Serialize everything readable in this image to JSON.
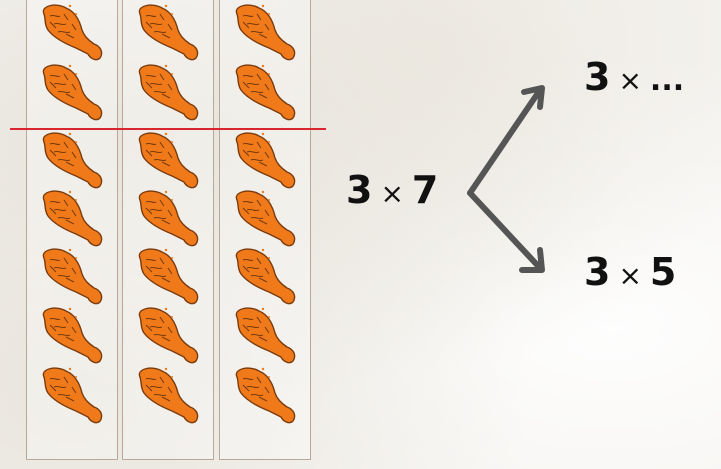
{
  "multiplication": {
    "main": {
      "a": "3",
      "op": "×",
      "b": "7"
    },
    "top": {
      "a": "3",
      "op": "×",
      "b": "..."
    },
    "bottom": {
      "a": "3",
      "op": "×",
      "b": "5"
    }
  },
  "illustration": {
    "columns": 3,
    "rows": 7,
    "item_icon": "chicken-drumstick-icon",
    "split_line_color": "#d9252e",
    "drumstick_color": "#f07a1a"
  }
}
